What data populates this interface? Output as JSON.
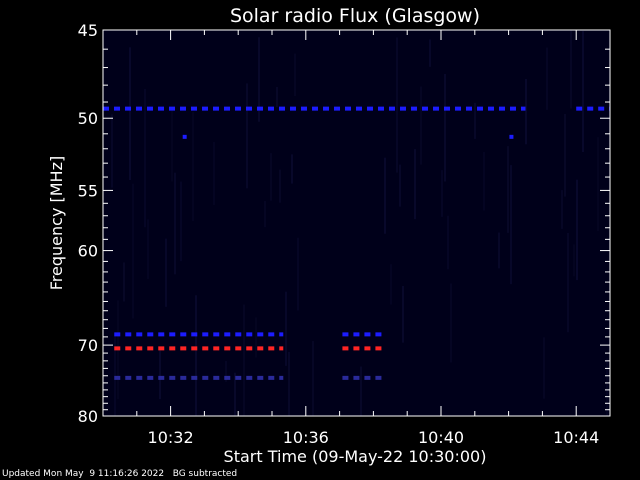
{
  "chart_data": {
    "type": "heatmap",
    "title": "Solar radio Flux (Glasgow)",
    "xlabel": "Start Time (09-May-22 10:30:00)",
    "ylabel": "Frequency [MHz]",
    "xlim": [
      "10:30",
      "10:45"
    ],
    "ylim": [
      45,
      80
    ],
    "y_scale": "reciprocal",
    "x_ticks": [
      "10:32",
      "10:36",
      "10:40",
      "10:44"
    ],
    "y_ticks": [
      45,
      50,
      55,
      60,
      70,
      80
    ],
    "grid": false,
    "background_color": "#00001a",
    "bands": [
      {
        "freq": 49.4,
        "color": "#1c1cff",
        "segments": [
          [
            "10:30:00",
            "10:42:30"
          ],
          [
            "10:44:00",
            "10:45:00"
          ]
        ]
      },
      {
        "freq": 68.7,
        "color": "#1c1cff",
        "segments": [
          [
            "10:30:20",
            "10:35:20"
          ],
          [
            "10:37:05",
            "10:38:15"
          ]
        ]
      },
      {
        "freq": 70.4,
        "color": "#ff2424",
        "segments": [
          [
            "10:30:20",
            "10:35:20"
          ],
          [
            "10:37:05",
            "10:38:15"
          ]
        ]
      },
      {
        "freq": 74.3,
        "color": "#2a2a9a",
        "segments": [
          [
            "10:30:20",
            "10:35:20"
          ],
          [
            "10:37:05",
            "10:38:15"
          ]
        ]
      }
    ],
    "spots": [
      {
        "time": "10:32:25",
        "freq": 51.2,
        "color": "#1c1cff"
      },
      {
        "time": "10:42:05",
        "freq": 51.2,
        "color": "#1c1cff"
      }
    ]
  },
  "footer": {
    "updated": "Updated Mon May  9 11:16:26 2022",
    "mode": "BG subtracted"
  }
}
